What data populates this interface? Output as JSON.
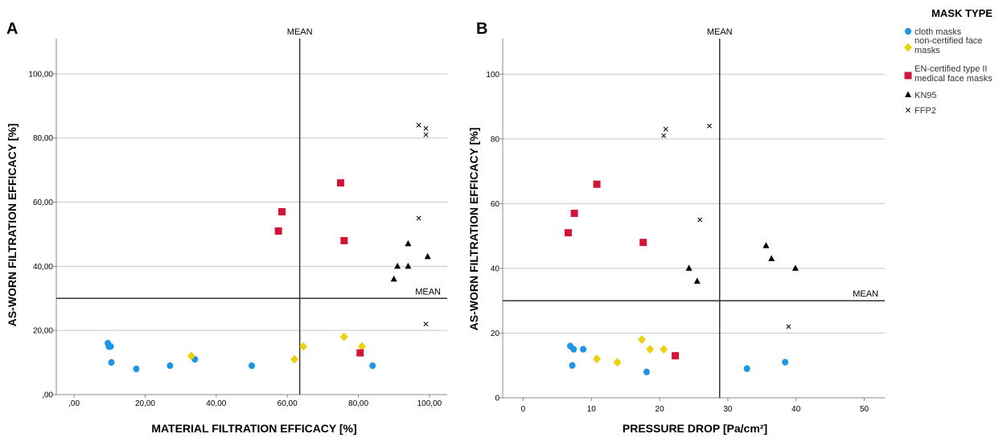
{
  "legend": {
    "title": "MASK TYPE",
    "items": [
      {
        "key": "cloth",
        "label_lines": [
          "cloth masks"
        ],
        "color": "#1f95e6",
        "marker": "circle"
      },
      {
        "key": "noncert",
        "label_lines": [
          "non-certified face",
          "masks"
        ],
        "color": "#e9d10f",
        "marker": "diamond"
      },
      {
        "key": "en",
        "label_lines": [
          "EN-certified type II",
          "medical face masks"
        ],
        "color": "#d2143b",
        "marker": "square"
      },
      {
        "key": "kn95",
        "label_lines": [
          "KN95"
        ],
        "color": "#000000",
        "marker": "triangle"
      },
      {
        "key": "ffp2",
        "label_lines": [
          "FFP2"
        ],
        "color": "#000000",
        "marker": "x"
      }
    ]
  },
  "chart_data": [
    {
      "type": "scatter",
      "panel": "A",
      "xlabel": "MATERIAL FILTRATION EFFICACY [%]",
      "ylabel": "AS-WORN FILTRATION EFFICACY [%]",
      "xlim": [
        -5,
        105
      ],
      "ylim": [
        0,
        111
      ],
      "xticks": [
        0,
        20,
        40,
        60,
        80,
        100
      ],
      "xtick_labels": [
        ",00",
        "20,00",
        "40,00",
        "60,00",
        "80,00",
        "100,00"
      ],
      "yticks": [
        0,
        20,
        40,
        60,
        80,
        100
      ],
      "ytick_labels": [
        ",00",
        "20,00",
        "40,00",
        "60,00",
        "80,00",
        "100,00"
      ],
      "grid": "horizontal",
      "mean_lines": {
        "x": 63.5,
        "y": 30,
        "x_label": "MEAN",
        "y_label": "MEAN"
      },
      "series": [
        {
          "key": "cloth",
          "points": [
            [
              9.5,
              16
            ],
            [
              9.8,
              15
            ],
            [
              10.3,
              15
            ],
            [
              10.5,
              10
            ],
            [
              17.5,
              8
            ],
            [
              27,
              9
            ],
            [
              34,
              11
            ],
            [
              50,
              9
            ],
            [
              84,
              9
            ]
          ]
        },
        {
          "key": "noncert",
          "points": [
            [
              33,
              12
            ],
            [
              62,
              11
            ],
            [
              64.5,
              15
            ],
            [
              76,
              18
            ],
            [
              81,
              15
            ]
          ]
        },
        {
          "key": "en",
          "points": [
            [
              57.5,
              51
            ],
            [
              58.5,
              57
            ],
            [
              75,
              66
            ],
            [
              76,
              48
            ],
            [
              80.5,
              13
            ]
          ]
        },
        {
          "key": "kn95",
          "points": [
            [
              90,
              36
            ],
            [
              91,
              40
            ],
            [
              94,
              40
            ],
            [
              94,
              47
            ],
            [
              99.5,
              43
            ]
          ]
        },
        {
          "key": "ffp2",
          "points": [
            [
              97,
              84
            ],
            [
              99,
              83
            ],
            [
              99,
              81
            ],
            [
              97,
              55
            ],
            [
              99,
              22
            ]
          ]
        }
      ]
    },
    {
      "type": "scatter",
      "panel": "B",
      "xlabel": "PRESSURE DROP [Pa/cm²]",
      "ylabel": "AS-WORN FILTRATION EFFICACY [%]",
      "xlim": [
        -3,
        53
      ],
      "ylim": [
        0,
        111
      ],
      "xticks": [
        0,
        10,
        20,
        30,
        40,
        50
      ],
      "xtick_labels": [
        "0",
        "10",
        "20",
        "30",
        "40",
        "50"
      ],
      "yticks": [
        0,
        20,
        40,
        60,
        80,
        100
      ],
      "ytick_labels": [
        "0",
        "20",
        "40",
        "60",
        "80",
        "100"
      ],
      "grid": "horizontal",
      "mean_lines": {
        "x": 28.8,
        "y": 30,
        "x_label": "MEAN",
        "y_label": "MEAN"
      },
      "series": [
        {
          "key": "cloth",
          "points": [
            [
              6.9,
              16
            ],
            [
              7.4,
              15
            ],
            [
              8.8,
              15
            ],
            [
              7.2,
              10
            ],
            [
              18.1,
              8
            ],
            [
              32.8,
              9
            ],
            [
              38.4,
              11
            ]
          ]
        },
        {
          "key": "noncert",
          "points": [
            [
              10.8,
              12
            ],
            [
              13.8,
              11
            ],
            [
              17.4,
              18
            ],
            [
              18.6,
              15
            ],
            [
              20.6,
              15
            ]
          ]
        },
        {
          "key": "en",
          "points": [
            [
              6.6,
              51
            ],
            [
              7.5,
              57
            ],
            [
              10.8,
              66
            ],
            [
              17.6,
              48
            ],
            [
              22.3,
              13
            ]
          ]
        },
        {
          "key": "kn95",
          "points": [
            [
              24.3,
              40
            ],
            [
              25.5,
              36
            ],
            [
              35.6,
              47
            ],
            [
              36.4,
              43
            ],
            [
              39.9,
              40
            ]
          ]
        },
        {
          "key": "ffp2",
          "points": [
            [
              20.9,
              83
            ],
            [
              20.6,
              81
            ],
            [
              27.3,
              84
            ],
            [
              25.9,
              55
            ],
            [
              38.9,
              22
            ]
          ]
        }
      ]
    }
  ]
}
